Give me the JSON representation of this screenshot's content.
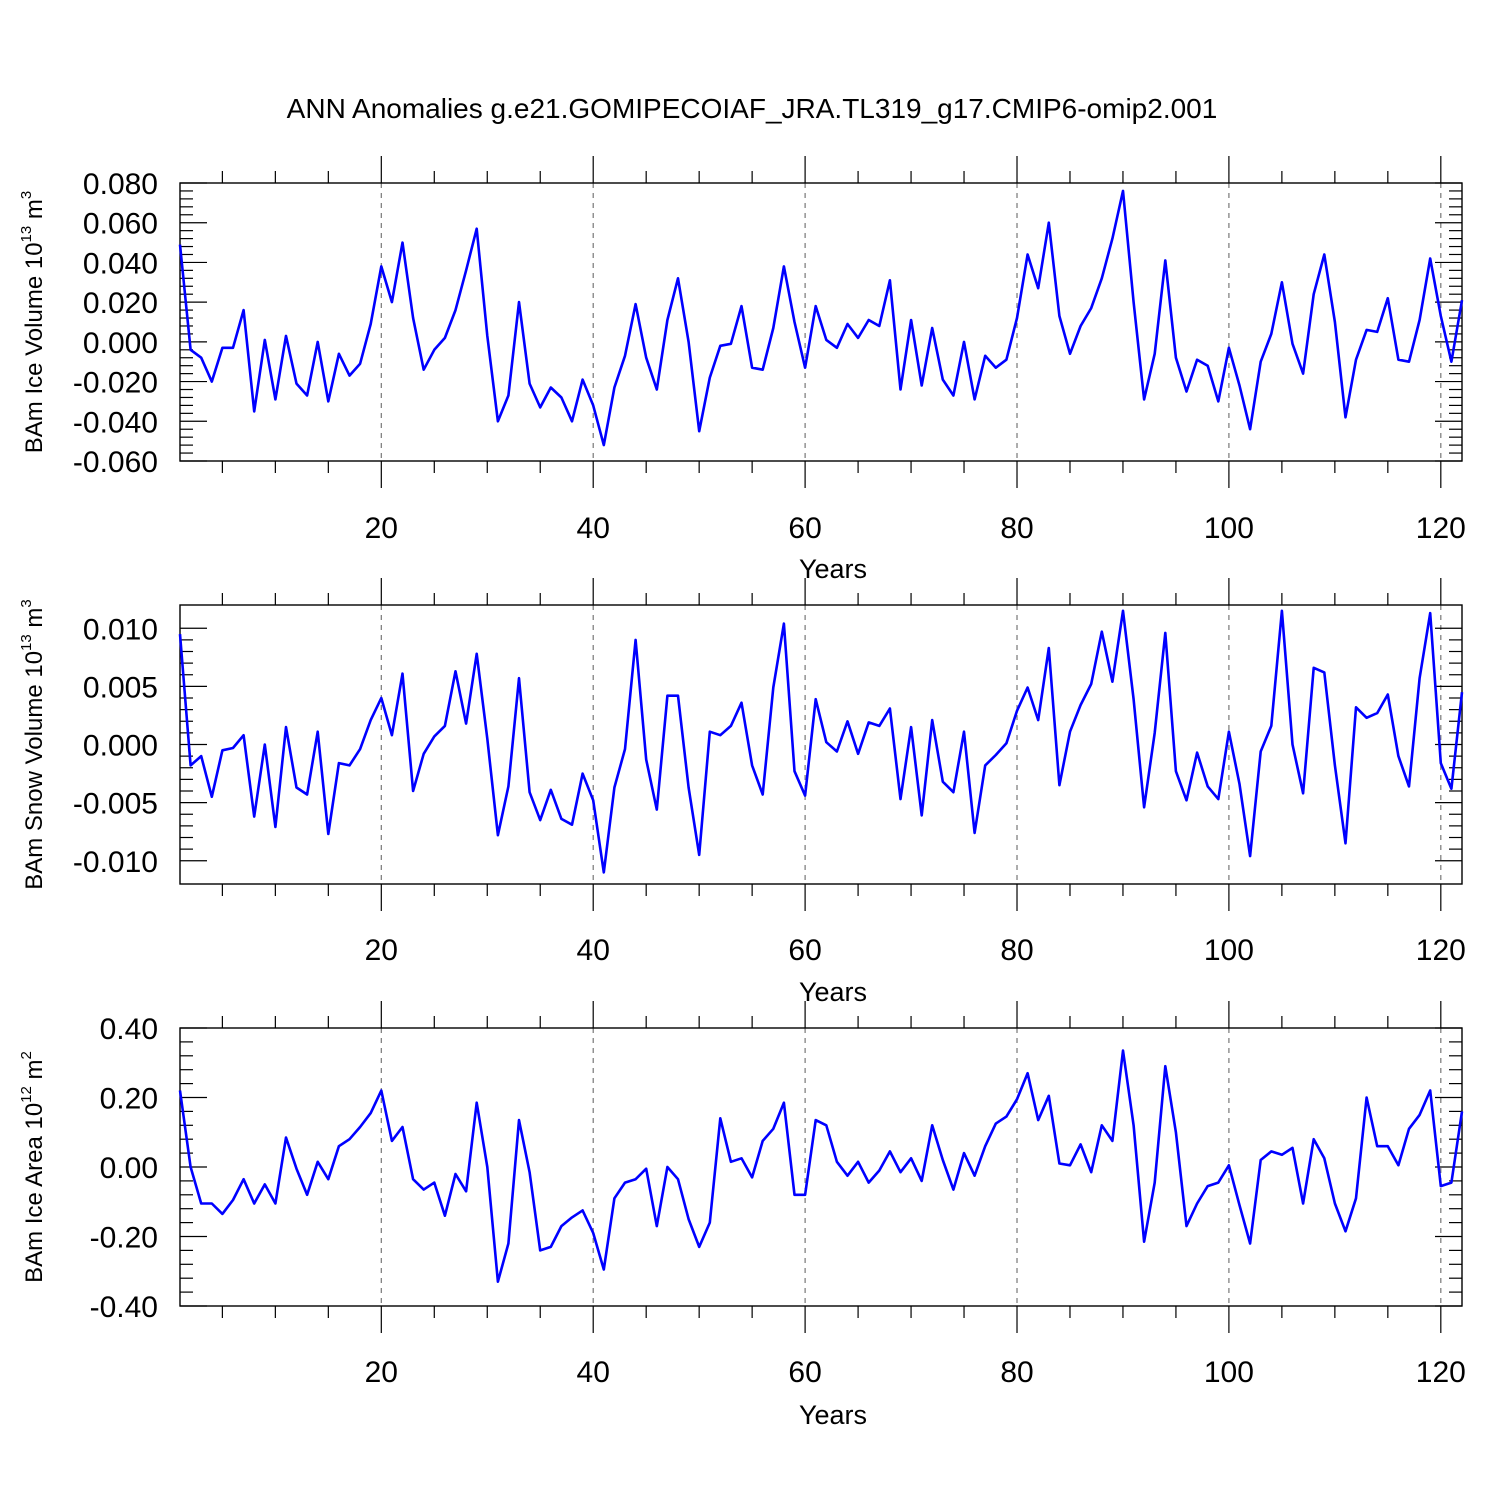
{
  "title": "ANN Anomalies g.e21.GOMIPECOIAF_JRA.TL319_g17.CMIP6-omip2.001",
  "line_color": "#0000ff",
  "chart_data": [
    {
      "type": "line",
      "ylabel": "BAm Ice Volume 10",
      "ylabel_exp": "13",
      "ylabel_unit": " m",
      "ylabel_unit_exp": "3",
      "xlabel": "Years",
      "xlim": [
        1,
        122
      ],
      "ylim": [
        -0.06,
        0.08
      ],
      "xticks": [
        20,
        40,
        60,
        80,
        100,
        120
      ],
      "xtick_labels": [
        "20",
        "40",
        "60",
        "80",
        "100",
        "120"
      ],
      "yticks": [
        -0.06,
        -0.04,
        -0.02,
        0.0,
        0.02,
        0.04,
        0.06,
        0.08
      ],
      "ytick_labels": [
        "-0.060",
        "-0.040",
        "-0.020",
        "0.000",
        "0.020",
        "0.040",
        "0.060",
        "0.080"
      ],
      "x_start": 1,
      "values": [
        0.049,
        -0.004,
        -0.008,
        -0.02,
        -0.003,
        -0.003,
        0.016,
        -0.035,
        0.001,
        -0.029,
        0.003,
        -0.021,
        -0.027,
        0.0,
        -0.03,
        -0.006,
        -0.017,
        -0.011,
        0.009,
        0.038,
        0.02,
        0.05,
        0.012,
        -0.014,
        -0.004,
        0.002,
        0.016,
        0.036,
        0.057,
        0.003,
        -0.04,
        -0.027,
        0.02,
        -0.021,
        -0.033,
        -0.023,
        -0.028,
        -0.04,
        -0.019,
        -0.032,
        -0.052,
        -0.023,
        -0.007,
        0.019,
        -0.008,
        -0.024,
        0.011,
        0.032,
        0.0,
        -0.045,
        -0.018,
        -0.002,
        -0.001,
        0.018,
        -0.013,
        -0.014,
        0.007,
        0.038,
        0.01,
        -0.013,
        0.018,
        0.001,
        -0.003,
        0.009,
        0.002,
        0.011,
        0.008,
        0.031,
        -0.024,
        0.011,
        -0.022,
        0.007,
        -0.019,
        -0.027,
        0.0,
        -0.029,
        -0.007,
        -0.013,
        -0.009,
        0.012,
        0.044,
        0.027,
        0.06,
        0.013,
        -0.006,
        0.008,
        0.017,
        0.032,
        0.052,
        0.076,
        0.02,
        -0.029,
        -0.006,
        0.041,
        -0.008,
        -0.025,
        -0.009,
        -0.012,
        -0.03,
        -0.003,
        -0.022,
        -0.044,
        -0.01,
        0.004,
        0.03,
        -0.001,
        -0.016,
        0.024,
        0.044,
        0.01,
        -0.038,
        -0.009,
        0.006,
        0.005,
        0.022,
        -0.009,
        -0.01,
        0.011,
        0.042,
        0.013,
        -0.01,
        0.021
      ]
    },
    {
      "type": "line",
      "ylabel": "BAm Snow Volume 10",
      "ylabel_exp": "13",
      "ylabel_unit": " m",
      "ylabel_unit_exp": "3",
      "xlabel": "Years",
      "xlim": [
        1,
        122
      ],
      "ylim": [
        -0.012,
        0.012
      ],
      "xticks": [
        20,
        40,
        60,
        80,
        100,
        120
      ],
      "xtick_labels": [
        "20",
        "40",
        "60",
        "80",
        "100",
        "120"
      ],
      "yticks": [
        -0.01,
        -0.005,
        0.0,
        0.005,
        0.01
      ],
      "ytick_labels": [
        "-0.010",
        "-0.005",
        "0.000",
        "0.005",
        "0.010"
      ],
      "x_start": 1,
      "values": [
        0.0095,
        -0.0018,
        -0.001,
        -0.0045,
        -0.0005,
        -0.0003,
        0.0008,
        -0.0062,
        0.0,
        -0.0071,
        0.0015,
        -0.0037,
        -0.0043,
        0.0011,
        -0.0077,
        -0.0016,
        -0.0018,
        -0.0004,
        0.0021,
        0.004,
        0.0008,
        0.0061,
        -0.004,
        -0.0008,
        0.0007,
        0.0016,
        0.0063,
        0.0018,
        0.0078,
        0.0005,
        -0.0078,
        -0.0036,
        0.0057,
        -0.0041,
        -0.0065,
        -0.0039,
        -0.0064,
        -0.0069,
        -0.0025,
        -0.0048,
        -0.011,
        -0.0037,
        -0.0004,
        0.009,
        -0.0013,
        -0.0056,
        0.0042,
        0.0042,
        -0.0037,
        -0.0095,
        0.0011,
        0.0008,
        0.0016,
        0.0036,
        -0.0018,
        -0.0043,
        0.0049,
        0.0104,
        -0.0023,
        -0.0044,
        0.0039,
        0.0002,
        -0.0006,
        0.002,
        -0.0008,
        0.0019,
        0.0016,
        0.0031,
        -0.0047,
        0.0015,
        -0.0061,
        0.0021,
        -0.0032,
        -0.0041,
        0.0011,
        -0.0076,
        -0.0018,
        -0.0009,
        0.0001,
        0.0029,
        0.0049,
        0.0021,
        0.0083,
        -0.0035,
        0.0011,
        0.0034,
        0.0052,
        0.0097,
        0.0054,
        0.0115,
        0.0039,
        -0.0054,
        0.001,
        0.0096,
        -0.0023,
        -0.0048,
        -0.0007,
        -0.0036,
        -0.0047,
        0.0011,
        -0.0034,
        -0.0096,
        -0.0006,
        0.0016,
        0.0115,
        0.0,
        -0.0042,
        0.0066,
        0.0062,
        -0.0018,
        -0.0085,
        0.0032,
        0.0023,
        0.0027,
        0.0043,
        -0.001,
        -0.0036,
        0.0057,
        0.0113,
        -0.0016,
        -0.0038,
        0.0045
      ]
    },
    {
      "type": "line",
      "ylabel": "BAm Ice Area 10",
      "ylabel_exp": "12",
      "ylabel_unit": " m",
      "ylabel_unit_exp": "2",
      "xlabel": "Years",
      "xlim": [
        1,
        122
      ],
      "ylim": [
        -0.4,
        0.4
      ],
      "xticks": [
        20,
        40,
        60,
        80,
        100,
        120
      ],
      "xtick_labels": [
        "20",
        "40",
        "60",
        "80",
        "100",
        "120"
      ],
      "yticks": [
        -0.4,
        -0.2,
        0.0,
        0.2,
        0.4
      ],
      "ytick_labels": [
        "-0.40",
        "-0.20",
        "0.00",
        "0.20",
        "0.40"
      ],
      "x_start": 1,
      "values": [
        0.22,
        0.0,
        -0.105,
        -0.105,
        -0.135,
        -0.095,
        -0.035,
        -0.105,
        -0.05,
        -0.105,
        0.085,
        -0.005,
        -0.08,
        0.015,
        -0.035,
        0.06,
        0.08,
        0.115,
        0.155,
        0.22,
        0.075,
        0.115,
        -0.035,
        -0.065,
        -0.045,
        -0.14,
        -0.02,
        -0.07,
        0.185,
        0.0,
        -0.33,
        -0.22,
        0.135,
        -0.015,
        -0.24,
        -0.23,
        -0.17,
        -0.145,
        -0.125,
        -0.19,
        -0.295,
        -0.09,
        -0.045,
        -0.035,
        -0.005,
        -0.17,
        0.0,
        -0.035,
        -0.15,
        -0.23,
        -0.16,
        0.14,
        0.015,
        0.025,
        -0.03,
        0.075,
        0.11,
        0.185,
        -0.08,
        -0.08,
        0.135,
        0.12,
        0.015,
        -0.025,
        0.015,
        -0.045,
        -0.01,
        0.045,
        -0.015,
        0.025,
        -0.04,
        0.12,
        0.02,
        -0.065,
        0.04,
        -0.025,
        0.06,
        0.125,
        0.145,
        0.195,
        0.27,
        0.135,
        0.205,
        0.01,
        0.005,
        0.065,
        -0.015,
        0.12,
        0.075,
        0.335,
        0.12,
        -0.215,
        -0.045,
        0.29,
        0.1,
        -0.17,
        -0.105,
        -0.055,
        -0.045,
        0.005,
        -0.11,
        -0.22,
        0.02,
        0.045,
        0.035,
        0.055,
        -0.105,
        0.08,
        0.025,
        -0.105,
        -0.185,
        -0.09,
        0.2,
        0.06,
        0.06,
        0.005,
        0.11,
        0.15,
        0.22,
        -0.055,
        -0.045,
        0.16
      ]
    }
  ]
}
